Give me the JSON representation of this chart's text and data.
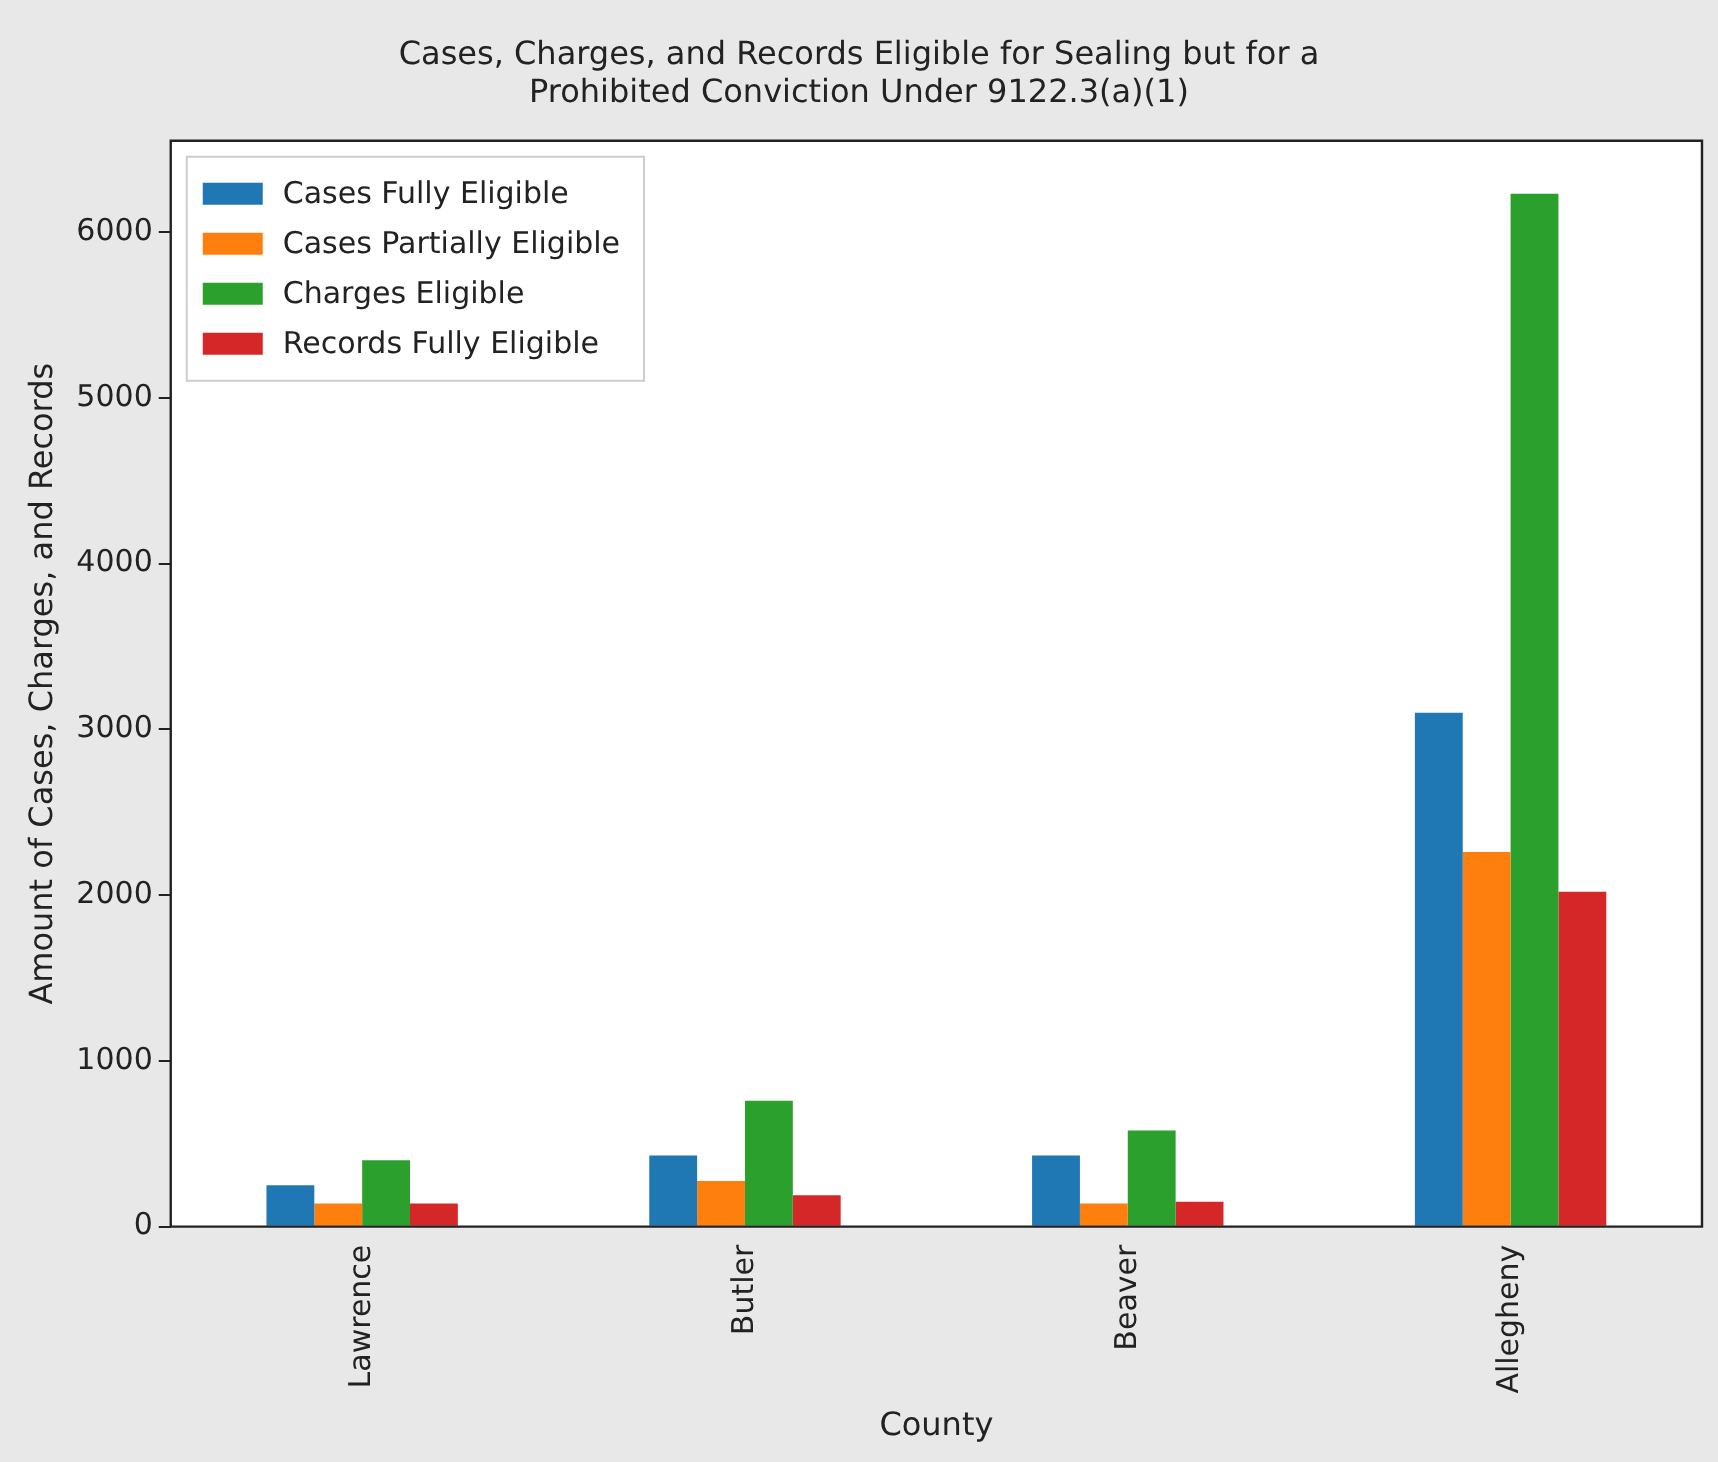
{
  "chart_data": {
    "type": "bar",
    "title": [
      "Cases, Charges, and Records Eligible for Sealing but for a",
      "Prohibited Conviction Under 9122.3(a)(1)"
    ],
    "xlabel": "County",
    "ylabel": "Amount of Cases, Charges, and Records",
    "categories": [
      "Lawrence",
      "Butler",
      "Beaver",
      "Allegheny"
    ],
    "series": [
      {
        "name": "Cases Fully Eligible",
        "color": "#1f77b4",
        "values": [
          250,
          430,
          430,
          3100
        ]
      },
      {
        "name": "Cases Partially Eligible",
        "color": "#ff7f0e",
        "values": [
          140,
          275,
          140,
          2260
        ]
      },
      {
        "name": "Charges Eligible",
        "color": "#2ca02c",
        "values": [
          400,
          760,
          580,
          6230
        ]
      },
      {
        "name": "Records Fully Eligible",
        "color": "#d62728",
        "values": [
          140,
          190,
          150,
          2020
        ]
      }
    ],
    "ylim": [
      0,
      6550
    ],
    "yticks": [
      0,
      1000,
      2000,
      3000,
      4000,
      5000,
      6000
    ],
    "grid": false,
    "legend": "top left"
  }
}
